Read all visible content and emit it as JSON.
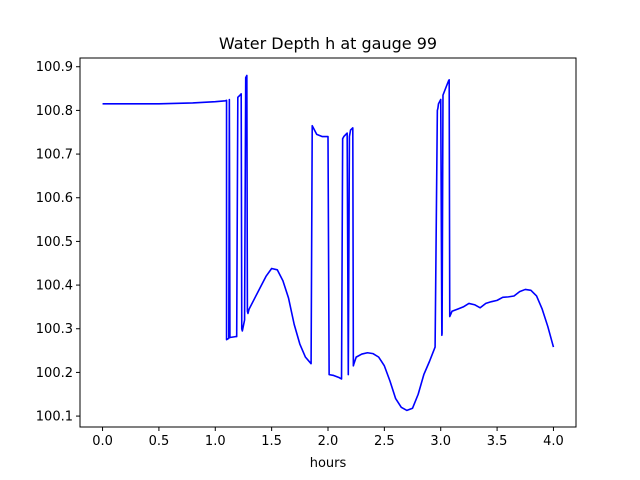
{
  "chart_data": {
    "type": "line",
    "title": "Water Depth h at gauge 99",
    "xlabel": "hours",
    "ylabel": "",
    "xlim": [
      -0.2,
      4.2
    ],
    "ylim": [
      100.075,
      100.92
    ],
    "xticks": [
      0.0,
      0.5,
      1.0,
      1.5,
      2.0,
      2.5,
      3.0,
      3.5,
      4.0
    ],
    "xtick_labels": [
      "0.0",
      "0.5",
      "1.0",
      "1.5",
      "2.0",
      "2.5",
      "3.0",
      "3.5",
      "4.0"
    ],
    "yticks": [
      100.1,
      100.2,
      100.3,
      100.4,
      100.5,
      100.6,
      100.7,
      100.8,
      100.9
    ],
    "ytick_labels": [
      "100.1",
      "100.2",
      "100.3",
      "100.4",
      "100.5",
      "100.6",
      "100.7",
      "100.8",
      "100.9"
    ],
    "grid": false,
    "legend": "none",
    "series": [
      {
        "color": "#0000ff",
        "x": [
          0.0,
          0.5,
          0.8,
          1.0,
          1.09,
          1.1,
          1.1,
          1.12,
          1.125,
          1.13,
          1.18,
          1.19,
          1.2,
          1.22,
          1.23,
          1.235,
          1.24,
          1.26,
          1.27,
          1.28,
          1.285,
          1.29,
          1.3,
          1.35,
          1.4,
          1.45,
          1.5,
          1.55,
          1.6,
          1.65,
          1.7,
          1.75,
          1.8,
          1.85,
          1.86,
          1.87,
          1.9,
          1.95,
          2.0,
          2.01,
          2.05,
          2.1,
          2.12,
          2.13,
          2.14,
          2.17,
          2.18,
          2.19,
          2.2,
          2.22,
          2.225,
          2.23,
          2.25,
          2.3,
          2.35,
          2.4,
          2.45,
          2.5,
          2.55,
          2.6,
          2.65,
          2.7,
          2.75,
          2.8,
          2.85,
          2.9,
          2.95,
          2.97,
          2.975,
          2.98,
          3.0,
          3.01,
          3.012,
          3.02,
          3.05,
          3.07,
          3.075,
          3.08,
          3.1,
          3.15,
          3.2,
          3.25,
          3.3,
          3.35,
          3.4,
          3.45,
          3.5,
          3.55,
          3.6,
          3.65,
          3.7,
          3.75,
          3.8,
          3.85,
          3.9,
          3.95,
          4.0
        ],
        "y": [
          100.815,
          100.815,
          100.817,
          100.82,
          100.822,
          100.823,
          100.275,
          100.278,
          100.825,
          100.28,
          100.282,
          100.282,
          100.83,
          100.835,
          100.838,
          100.3,
          100.295,
          100.32,
          100.875,
          100.88,
          100.34,
          100.335,
          100.345,
          100.37,
          100.395,
          100.42,
          100.438,
          100.435,
          100.41,
          100.37,
          100.31,
          100.265,
          100.235,
          100.22,
          100.765,
          100.76,
          100.745,
          100.74,
          100.74,
          100.195,
          100.193,
          100.188,
          100.185,
          100.735,
          100.74,
          100.748,
          100.195,
          100.74,
          100.755,
          100.76,
          100.215,
          100.22,
          100.235,
          100.242,
          100.245,
          100.243,
          100.235,
          100.215,
          100.18,
          100.14,
          100.12,
          100.113,
          100.118,
          100.15,
          100.195,
          100.225,
          100.258,
          100.8,
          100.805,
          100.815,
          100.825,
          100.285,
          100.29,
          100.835,
          100.855,
          100.868,
          100.87,
          100.328,
          100.34,
          100.345,
          100.35,
          100.358,
          100.355,
          100.348,
          100.358,
          100.362,
          100.365,
          100.372,
          100.373,
          100.375,
          100.385,
          100.39,
          100.388,
          100.375,
          100.345,
          100.305,
          100.258
        ]
      }
    ]
  }
}
